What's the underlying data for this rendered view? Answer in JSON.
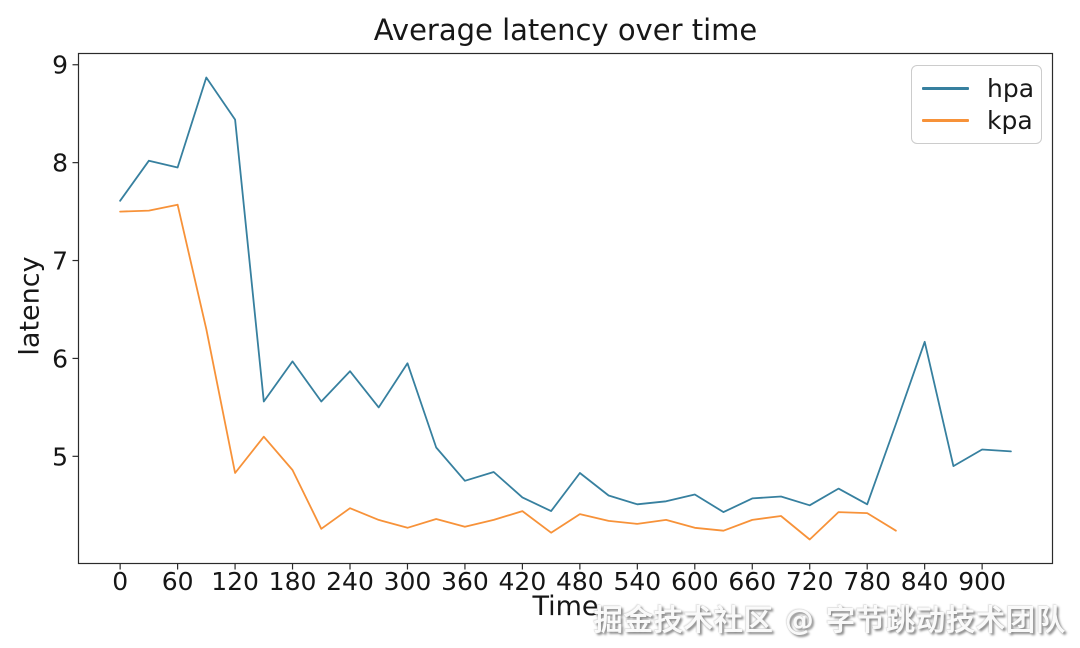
{
  "title": "Average latency over time",
  "watermark": "掘金技术社区 @ 字节跳动技术团队",
  "chart_data": {
    "type": "line",
    "title": "Average latency over time",
    "xlabel": "Time",
    "ylabel": "latency",
    "xlim": [
      -44,
      974
    ],
    "ylim": [
      3.9,
      9.12
    ],
    "x_ticks": [
      0,
      60,
      120,
      180,
      240,
      300,
      360,
      420,
      480,
      540,
      600,
      660,
      720,
      780,
      840,
      900
    ],
    "y_ticks": [
      5,
      6,
      7,
      8,
      9
    ],
    "grid": false,
    "legend_position": "upper right",
    "series": [
      {
        "name": "hpa",
        "color": "#37809f",
        "x": [
          0,
          30,
          60,
          90,
          120,
          150,
          180,
          210,
          240,
          270,
          300,
          330,
          360,
          390,
          420,
          450,
          480,
          510,
          540,
          570,
          600,
          630,
          660,
          690,
          720,
          750,
          780,
          810,
          840,
          870,
          900,
          930
        ],
        "values": [
          7.61,
          8.02,
          7.95,
          8.87,
          8.44,
          5.56,
          5.97,
          5.56,
          5.87,
          5.5,
          5.95,
          5.09,
          4.75,
          4.84,
          4.58,
          4.44,
          4.83,
          4.6,
          4.51,
          4.54,
          4.61,
          4.43,
          4.57,
          4.59,
          4.5,
          4.67,
          4.51,
          5.33,
          6.17,
          4.9,
          5.07,
          5.05
        ]
      },
      {
        "name": "kpa",
        "color": "#f79239",
        "x": [
          0,
          30,
          60,
          90,
          120,
          150,
          180,
          210,
          240,
          270,
          300,
          330,
          360,
          390,
          420,
          450,
          480,
          510,
          540,
          570,
          600,
          630,
          660,
          690,
          720,
          750,
          780,
          810
        ],
        "values": [
          7.5,
          7.51,
          7.57,
          6.3,
          4.83,
          5.2,
          4.86,
          4.26,
          4.47,
          4.35,
          4.27,
          4.36,
          4.28,
          4.35,
          4.44,
          4.22,
          4.41,
          4.34,
          4.31,
          4.35,
          4.27,
          4.24,
          4.35,
          4.39,
          4.15,
          4.43,
          4.42,
          4.24
        ]
      }
    ]
  }
}
